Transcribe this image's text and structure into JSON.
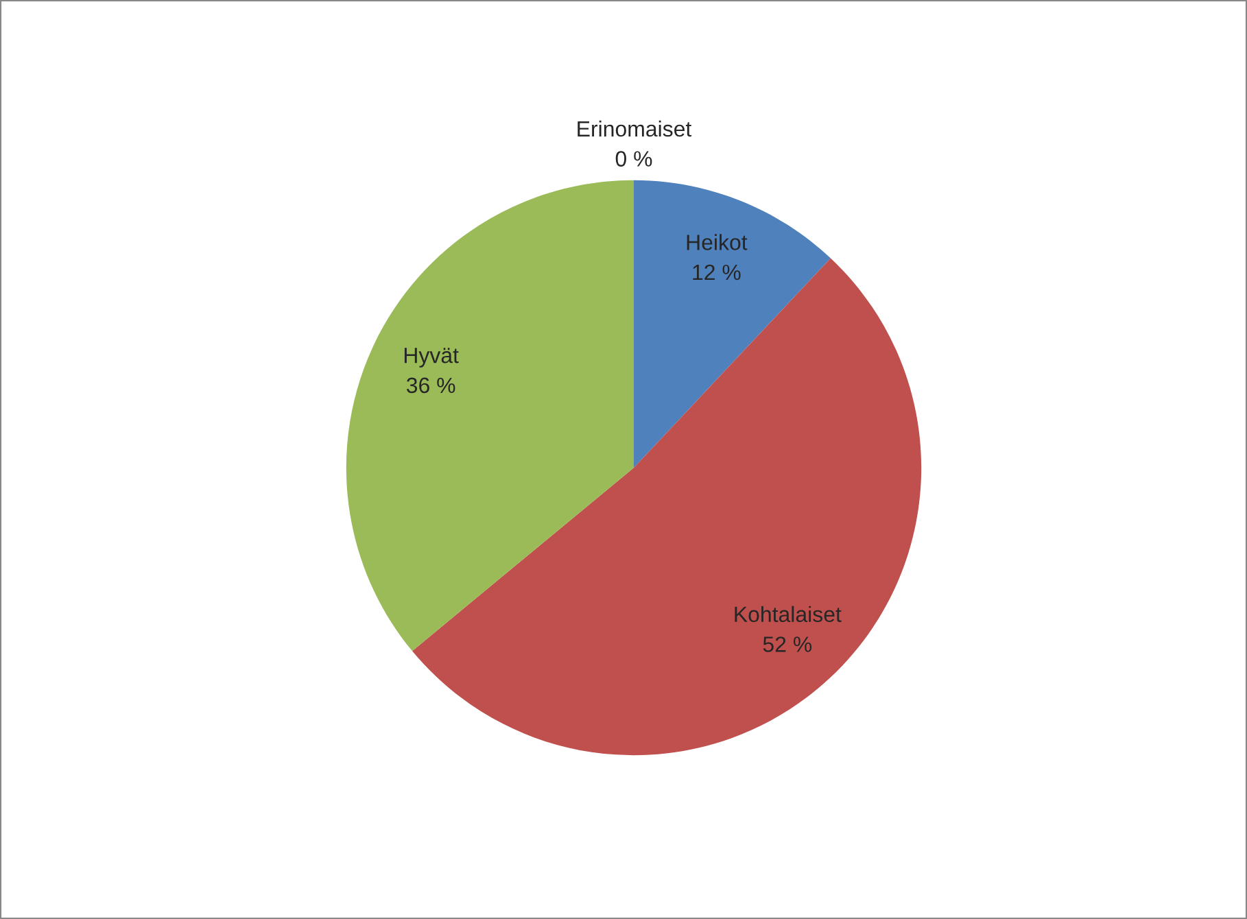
{
  "chart_data": {
    "type": "pie",
    "categories": [
      "Heikot",
      "Kohtalaiset",
      "Hyvät",
      "Erinomaiset"
    ],
    "values": [
      12,
      52,
      36,
      0
    ],
    "value_labels": [
      "12 %",
      "52 %",
      "36 %",
      "0 %"
    ],
    "colors": [
      "#4f81bd",
      "#c0504d",
      "#9bbb59",
      "#8064a2"
    ],
    "legend": false
  }
}
